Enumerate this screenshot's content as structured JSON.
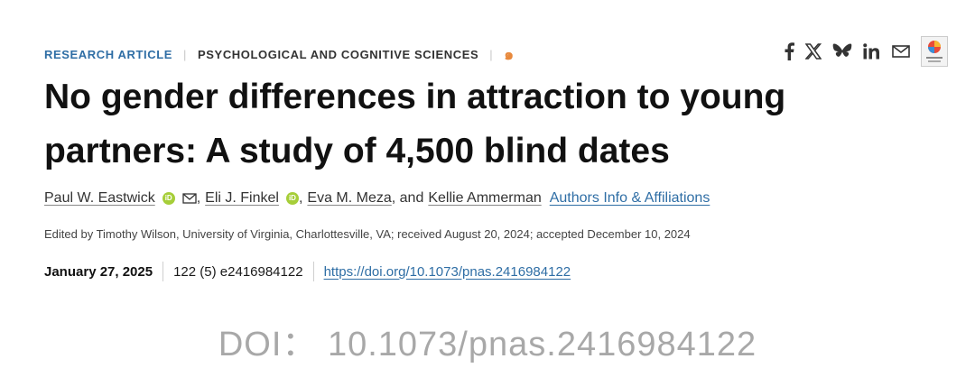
{
  "header": {
    "category_primary": "RESEARCH ARTICLE",
    "category_secondary": "PSYCHOLOGICAL AND COGNITIVE SCIENCES",
    "open_access_symbol": "๑",
    "share_icons": [
      "facebook-icon",
      "x-icon",
      "bluesky-icon",
      "linkedin-icon",
      "email-icon",
      "check-for-updates-icon"
    ],
    "accent_color": "#2f6ea5",
    "open_access_color": "#e8893c"
  },
  "article": {
    "title": "No gender differences in attraction to young partners: A study of 4,500 blind dates",
    "authors": [
      {
        "name": "Paul W. Eastwick",
        "orcid": true,
        "email": true
      },
      {
        "name": "Eli J. Finkel",
        "orcid": true,
        "email": false
      },
      {
        "name": "Eva M. Meza",
        "orcid": false,
        "email": false
      },
      {
        "name": "Kellie Ammerman",
        "orcid": false,
        "email": false
      }
    ],
    "sep_comma": ",",
    "sep_and": ", and",
    "orcid_label": "iD",
    "affiliations_link": "Authors Info & Affiliations",
    "edited_by": "Edited by Timothy Wilson, University of Virginia, Charlottesville, VA; received August 20, 2024; accepted December 10, 2024",
    "publication_date": "January 27, 2025",
    "citation": "122 (5) e2416984122",
    "doi_url": "https://doi.org/10.1073/pnas.2416984122"
  },
  "caption": "DOI： 10.1073/pnas.2416984122"
}
